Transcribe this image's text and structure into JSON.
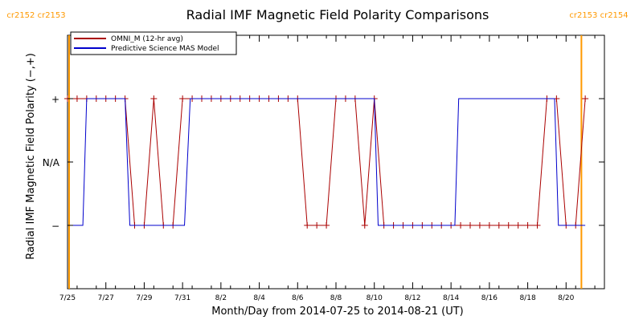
{
  "chart_data": {
    "type": "line",
    "title": "Radial IMF Magnetic Field Polarity Comparisons",
    "xlabel": "Month/Day from 2014-07-25 to 2014-08-21 (UT)",
    "ylabel": "Radial IMF Magnetic Field Polarity (−,+)",
    "ylim": [
      -2,
      2
    ],
    "xlim": [
      "2014-07-25",
      "2014-08-22"
    ],
    "x_unit": "days since 2014-07-25",
    "y_ticks": [
      {
        "value": 1,
        "label": "+"
      },
      {
        "value": 0,
        "label": "N/A"
      },
      {
        "value": -1,
        "label": "−"
      }
    ],
    "x_ticks": [
      {
        "day": 0,
        "label": "7/25"
      },
      {
        "day": 2,
        "label": "7/27"
      },
      {
        "day": 4,
        "label": "7/29"
      },
      {
        "day": 6,
        "label": "7/31"
      },
      {
        "day": 8,
        "label": "8/2"
      },
      {
        "day": 10,
        "label": "8/4"
      },
      {
        "day": 12,
        "label": "8/6"
      },
      {
        "day": 14,
        "label": "8/8"
      },
      {
        "day": 16,
        "label": "8/10"
      },
      {
        "day": 18,
        "label": "8/12"
      },
      {
        "day": 20,
        "label": "8/14"
      },
      {
        "day": 22,
        "label": "8/16"
      },
      {
        "day": 24,
        "label": "8/18"
      },
      {
        "day": 26,
        "label": "8/20"
      }
    ],
    "carrington_markers": [
      {
        "day": 0.0,
        "label": "cr2152 cr2153",
        "side": "left",
        "color": "#ff9900"
      },
      {
        "day": 26.8,
        "label": "cr2153 cr2154",
        "side": "right",
        "color": "#ff9900"
      }
    ],
    "legend": {
      "placement": "top-left"
    },
    "series": [
      {
        "name": "OMNI_M (12-hr avg)",
        "color": "#aa0000",
        "marker": "plus",
        "points": [
          [
            0.0,
            1
          ],
          [
            0.5,
            1
          ],
          [
            1.0,
            1
          ],
          [
            1.5,
            1
          ],
          [
            2.0,
            1
          ],
          [
            2.5,
            1
          ],
          [
            3.0,
            1
          ],
          [
            3.5,
            -1
          ],
          [
            4.0,
            -1
          ],
          [
            4.5,
            1
          ],
          [
            5.0,
            -1
          ],
          [
            5.5,
            -1
          ],
          [
            6.0,
            1
          ],
          [
            6.5,
            1
          ],
          [
            7.0,
            1
          ],
          [
            7.5,
            1
          ],
          [
            8.0,
            1
          ],
          [
            8.5,
            1
          ],
          [
            9.0,
            1
          ],
          [
            9.5,
            1
          ],
          [
            10.0,
            1
          ],
          [
            10.5,
            1
          ],
          [
            11.0,
            1
          ],
          [
            11.5,
            1
          ],
          [
            12.0,
            1
          ],
          [
            12.5,
            -1
          ],
          [
            13.0,
            -1
          ],
          [
            13.5,
            -1
          ],
          [
            14.0,
            1
          ],
          [
            14.5,
            1
          ],
          [
            15.0,
            1
          ],
          [
            15.5,
            -1
          ],
          [
            16.0,
            1
          ],
          [
            16.5,
            -1
          ],
          [
            17.0,
            -1
          ],
          [
            17.5,
            -1
          ],
          [
            18.0,
            -1
          ],
          [
            18.5,
            -1
          ],
          [
            19.0,
            -1
          ],
          [
            19.5,
            -1
          ],
          [
            20.0,
            -1
          ],
          [
            20.5,
            -1
          ],
          [
            21.0,
            -1
          ],
          [
            21.5,
            -1
          ],
          [
            22.0,
            -1
          ],
          [
            22.5,
            -1
          ],
          [
            23.0,
            -1
          ],
          [
            23.5,
            -1
          ],
          [
            24.0,
            -1
          ],
          [
            24.5,
            -1
          ],
          [
            25.0,
            1
          ],
          [
            25.5,
            1
          ],
          [
            26.0,
            -1
          ],
          [
            26.5,
            -1
          ],
          [
            27.0,
            1
          ]
        ]
      },
      {
        "name": "Predictive Science MAS Model",
        "color": "#0000cc",
        "marker": "none",
        "points": [
          [
            0.0,
            -1
          ],
          [
            0.8,
            -1
          ],
          [
            1.0,
            1
          ],
          [
            3.0,
            1
          ],
          [
            3.25,
            -1
          ],
          [
            6.1,
            -1
          ],
          [
            6.4,
            1
          ],
          [
            16.0,
            1
          ],
          [
            16.2,
            -1
          ],
          [
            20.2,
            -1
          ],
          [
            20.4,
            1
          ],
          [
            25.4,
            1
          ],
          [
            25.6,
            -1
          ],
          [
            27.0,
            -1
          ]
        ]
      }
    ]
  }
}
